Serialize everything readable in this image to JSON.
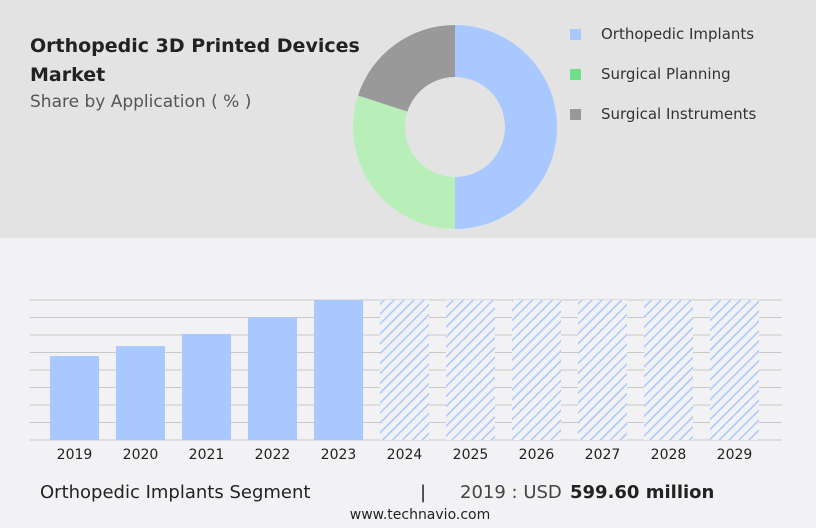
{
  "header": {
    "title": "Orthopedic 3D Printed Devices Market",
    "subtitle": "Share by Application ( % )"
  },
  "chart_data": [
    {
      "type": "pie",
      "variant": "donut",
      "series": [
        {
          "name": "Orthopedic Implants",
          "value": 50,
          "color": "#a8c8ff"
        },
        {
          "name": "Surgical Planning",
          "value": 30,
          "color": "#b8efb8"
        },
        {
          "name": "Surgical Instruments",
          "value": 20,
          "color": "#999999"
        }
      ],
      "legend_colors": [
        "#a8c8ff",
        "#6ee08a",
        "#999999"
      ],
      "legend": "right"
    },
    {
      "type": "bar",
      "categories": [
        "2019",
        "2020",
        "2021",
        "2022",
        "2023",
        "2024",
        "2025",
        "2026",
        "2027",
        "2028",
        "2029"
      ],
      "values": [
        599.6,
        671,
        757,
        878,
        1000,
        null,
        null,
        null,
        null,
        null,
        null
      ],
      "forecast_from": "2024",
      "unit": "USD million",
      "grid": true,
      "color": "#a8c8ff"
    }
  ],
  "footer": {
    "segment": "Orthopedic Implants Segment",
    "separator": "|",
    "year_label": "2019 : USD",
    "value": "599.60 million",
    "url": "www.technavio.com"
  }
}
